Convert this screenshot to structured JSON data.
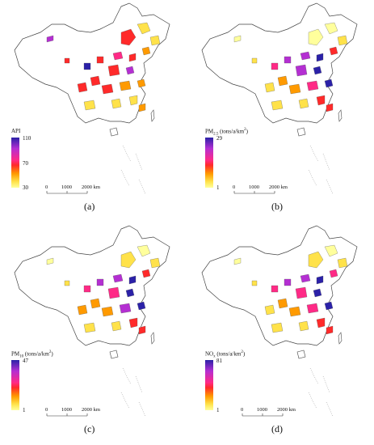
{
  "panels": [
    {
      "caption": "(a)",
      "legend": {
        "var": "API",
        "sub": "",
        "unit": "",
        "max": "110",
        "mid": "70",
        "min": "30"
      },
      "scale": {
        "ticks": [
          "0",
          "1000",
          "2000 km"
        ]
      }
    },
    {
      "caption": "(b)",
      "legend": {
        "var": "PM",
        "sub": "2.5",
        "unit": " (tons/a/km",
        "unit_sup": "2",
        "unit_end": ")",
        "max": "29",
        "mid": "",
        "min": "1"
      },
      "scale": {
        "ticks": [
          "0",
          "1000",
          "2000 km"
        ]
      }
    },
    {
      "caption": "(c)",
      "legend": {
        "var": "PM",
        "sub": "10",
        "unit": " (tons/a/km",
        "unit_sup": "2",
        "unit_end": ")",
        "max": "47",
        "mid": "",
        "min": "1"
      },
      "scale": {
        "ticks": [
          "0",
          "1000",
          "2000 km"
        ]
      }
    },
    {
      "caption": "(d)",
      "legend": {
        "var": "NO",
        "sub": "x",
        "unit": " (tons/a/km",
        "unit_sup": "2",
        "unit_end": ")",
        "max": "81",
        "mid": "",
        "min": "1"
      },
      "scale": {
        "ticks": [
          "0",
          "1000",
          "2000 km"
        ]
      }
    }
  ],
  "colors": {
    "high": "#2b21a8",
    "upper": "#b42fd2",
    "mid": "#ff2a2a",
    "lower": "#ff9a00",
    "low": "#ffff9c"
  }
}
